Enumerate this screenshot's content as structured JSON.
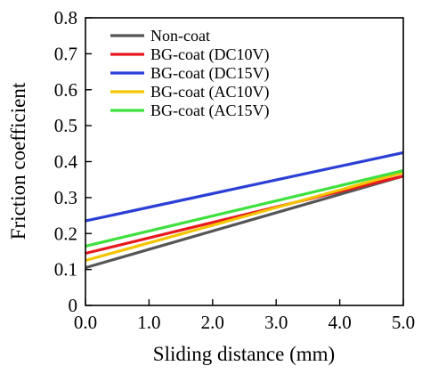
{
  "chart_data": {
    "type": "line",
    "xlabel": "Sliding distance (mm)",
    "ylabel": "Friction coefficient",
    "xlim": [
      0,
      5
    ],
    "ylim": [
      0,
      0.8
    ],
    "x_ticks": [
      "0.0",
      "1.0",
      "2.0",
      "3.0",
      "4.0",
      "5.0"
    ],
    "y_ticks": [
      "0",
      "0.1",
      "0.2",
      "0.3",
      "0.4",
      "0.5",
      "0.6",
      "0.7",
      "0.8"
    ],
    "grid": false,
    "legend_position": "top-left",
    "series": [
      {
        "name": "Non-coat",
        "color": "#555555",
        "x": [
          0,
          5
        ],
        "y": [
          0.105,
          0.36
        ]
      },
      {
        "name": "BG-coat (DC10V)",
        "color": "#e8191e",
        "x": [
          0,
          5
        ],
        "y": [
          0.145,
          0.36
        ]
      },
      {
        "name": "BG-coat (DC15V)",
        "color": "#2b3fd6",
        "x": [
          0,
          5
        ],
        "y": [
          0.235,
          0.425
        ]
      },
      {
        "name": "BG-coat (AC10V)",
        "color": "#f5c400",
        "x": [
          0,
          5
        ],
        "y": [
          0.125,
          0.37
        ]
      },
      {
        "name": "BG-coat (AC15V)",
        "color": "#3ee03e",
        "x": [
          0,
          5
        ],
        "y": [
          0.165,
          0.375
        ]
      }
    ]
  }
}
